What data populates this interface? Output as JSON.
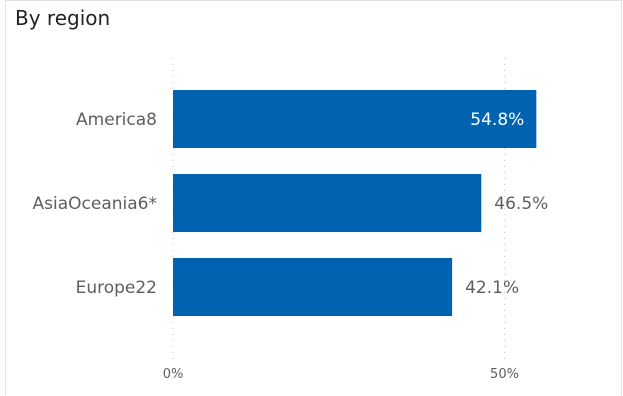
{
  "chart_data": {
    "type": "bar",
    "orientation": "horizontal",
    "title": "By region",
    "categories": [
      "America8",
      "AsiaOceania6*",
      "Europe22"
    ],
    "values": [
      54.8,
      46.5,
      42.1
    ],
    "data_labels": [
      "54.8%",
      "46.5%",
      "42.1%"
    ],
    "x_ticks": [
      0,
      50
    ],
    "x_tick_labels": [
      "0%",
      "50%"
    ],
    "xlim": [
      0,
      68.5
    ],
    "grid": "vertical dotted",
    "legend": "none",
    "bar_color": "#0063B1"
  }
}
